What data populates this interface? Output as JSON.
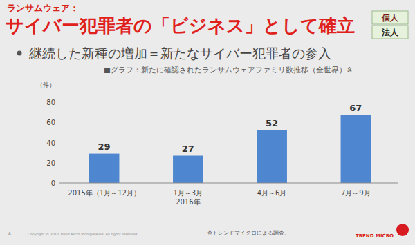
{
  "slide": {
    "kicker": "ランサムウェア：",
    "heading": "サイバー犯罪者の「ビジネス」として確立",
    "tags": [
      "個人",
      "法人"
    ],
    "bullet": "継続した新種の増加＝新たなサイバー犯罪者の参入",
    "footnote": "※トレンドマイクロによる調査。",
    "copyright": "Copyright © 2017 Trend Micro Incorporated. All rights reserved.",
    "page": "8",
    "logo": "TREND MICRO"
  },
  "chart_data": {
    "type": "bar",
    "title": "■グラフ：新たに確認されたランサムウェアファミリ数推移（全世界）※",
    "y_label": "（件）",
    "categories": [
      "2015年（1月～12月）",
      "1月～3月",
      "4月～6月",
      "7月～9月"
    ],
    "annotations": [
      "2016年"
    ],
    "values": [
      29,
      27,
      52,
      67
    ],
    "color": "#4f86d0",
    "ylim": [
      0,
      80
    ],
    "yticks": [
      0,
      20,
      40,
      60,
      80
    ],
    "grid": false,
    "data_labels": true
  }
}
